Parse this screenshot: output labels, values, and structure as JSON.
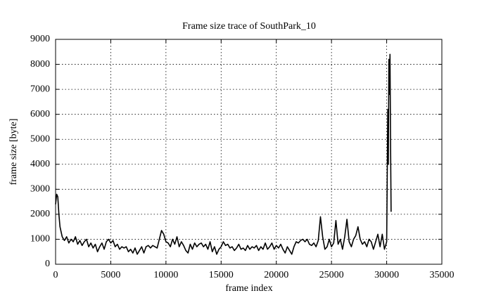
{
  "chart_data": {
    "type": "line",
    "title": "Frame size trace of SouthPark_10",
    "x_label": "frame index",
    "y_label": "frame size [byte]",
    "xlim": [
      0,
      35000
    ],
    "xticks": [
      0,
      5000,
      10000,
      15000,
      20000,
      25000,
      30000,
      35000
    ],
    "ylim": [
      0,
      9000
    ],
    "yticks": [
      0,
      1000,
      2000,
      3000,
      4000,
      5000,
      6000,
      7000,
      8000,
      9000
    ],
    "grid": true,
    "series": [
      {
        "name": "SouthPark_10",
        "color": "#000000",
        "x": [
          0,
          100,
          200,
          300,
          400,
          600,
          800,
          1000,
          1200,
          1400,
          1600,
          1800,
          2000,
          2200,
          2400,
          2600,
          2800,
          3000,
          3200,
          3400,
          3600,
          3800,
          4000,
          4200,
          4400,
          4600,
          4800,
          5000,
          5200,
          5400,
          5600,
          5800,
          6000,
          6200,
          6400,
          6600,
          6800,
          7000,
          7200,
          7400,
          7600,
          7800,
          8000,
          8200,
          8400,
          8600,
          8800,
          9000,
          9200,
          9400,
          9600,
          9800,
          10000,
          10200,
          10400,
          10600,
          10800,
          11000,
          11200,
          11400,
          11600,
          11800,
          12000,
          12200,
          12400,
          12600,
          12800,
          13000,
          13200,
          13400,
          13600,
          13800,
          14000,
          14200,
          14400,
          14600,
          14800,
          15000,
          15200,
          15400,
          15600,
          15800,
          16000,
          16200,
          16400,
          16600,
          16800,
          17000,
          17200,
          17400,
          17600,
          17800,
          18000,
          18200,
          18400,
          18600,
          18800,
          19000,
          19200,
          19400,
          19600,
          19800,
          20000,
          20200,
          20400,
          20600,
          20800,
          21000,
          21200,
          21400,
          21600,
          21800,
          22000,
          22200,
          22400,
          22600,
          22800,
          23000,
          23200,
          23400,
          23600,
          23800,
          24000,
          24200,
          24400,
          24600,
          24800,
          25000,
          25200,
          25400,
          25600,
          25800,
          26000,
          26200,
          26400,
          26600,
          26800,
          27000,
          27200,
          27400,
          27600,
          27800,
          28000,
          28200,
          28400,
          28600,
          28800,
          29000,
          29200,
          29400,
          29600,
          29800,
          30000,
          30050,
          30100,
          30150,
          30200,
          30250,
          30300,
          30350,
          30400
        ],
        "values": [
          2400,
          2800,
          2700,
          2000,
          1500,
          1100,
          950,
          1100,
          850,
          1000,
          900,
          1100,
          800,
          950,
          750,
          900,
          1000,
          700,
          850,
          650,
          800,
          500,
          700,
          850,
          600,
          900,
          1000,
          850,
          950,
          700,
          800,
          600,
          700,
          650,
          700,
          500,
          600,
          450,
          650,
          400,
          550,
          700,
          450,
          700,
          750,
          650,
          750,
          700,
          650,
          1000,
          1350,
          1200,
          900,
          850,
          700,
          1000,
          800,
          1100,
          700,
          900,
          750,
          550,
          450,
          800,
          600,
          850,
          700,
          800,
          850,
          700,
          800,
          600,
          900,
          500,
          700,
          400,
          600,
          700,
          900,
          750,
          800,
          650,
          700,
          550,
          650,
          800,
          600,
          650,
          550,
          750,
          600,
          700,
          650,
          750,
          550,
          700,
          600,
          850,
          600,
          700,
          850,
          600,
          750,
          650,
          800,
          600,
          450,
          700,
          550,
          400,
          700,
          900,
          850,
          950,
          1000,
          900,
          1000,
          800,
          750,
          850,
          700,
          950,
          1900,
          1100,
          600,
          700,
          1000,
          700,
          850,
          1750,
          800,
          1000,
          600,
          1100,
          1800,
          900,
          700,
          1000,
          1150,
          1500,
          1000,
          800,
          900,
          700,
          1000,
          900,
          600,
          900,
          1200,
          700,
          1200,
          600,
          900,
          3500,
          6200,
          4000,
          8200,
          6800,
          8400,
          5000,
          2100
        ]
      }
    ]
  }
}
